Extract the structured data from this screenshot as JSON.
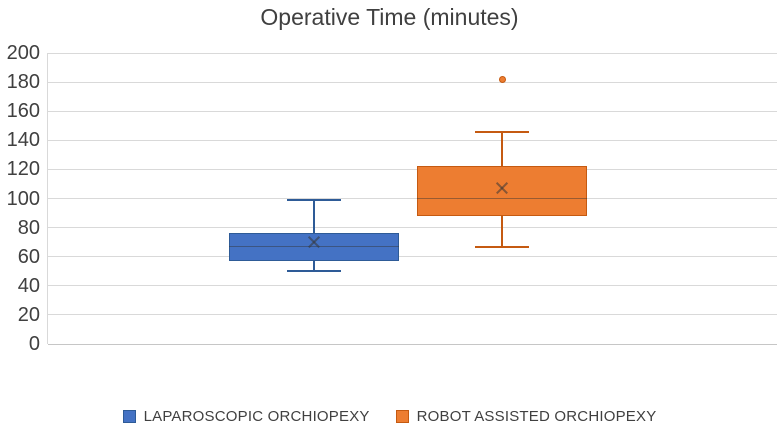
{
  "title": "Operative Time (minutes)",
  "chart_data": {
    "type": "boxplot",
    "title": "Operative Time (minutes)",
    "ylabel": "",
    "xlabel": "",
    "ylim": [
      0,
      200
    ],
    "yticks": [
      0,
      20,
      40,
      60,
      80,
      100,
      120,
      140,
      160,
      180,
      200
    ],
    "grid": "horizontal",
    "legend_position": "bottom",
    "series": [
      {
        "name": "LAPAROSCOPIC ORCHIOPEXY",
        "color": "#4472C4",
        "border_color": "#2E5B97",
        "min": 50,
        "q1": 57,
        "median": 67,
        "mean": 70,
        "q3": 76,
        "max": 99,
        "outliers": []
      },
      {
        "name": "ROBOT ASSISTED ORCHIOPEXY",
        "color": "#ED7D31",
        "border_color": "#C55A11",
        "min": 67,
        "q1": 88,
        "median": 100,
        "mean": 107,
        "q3": 122,
        "max": 146,
        "outliers": [
          182
        ]
      }
    ],
    "layout_hints": {
      "centers_frac": [
        0.365,
        0.623
      ],
      "box_width_frac": 0.233,
      "cap_width_frac": 0.32
    }
  }
}
